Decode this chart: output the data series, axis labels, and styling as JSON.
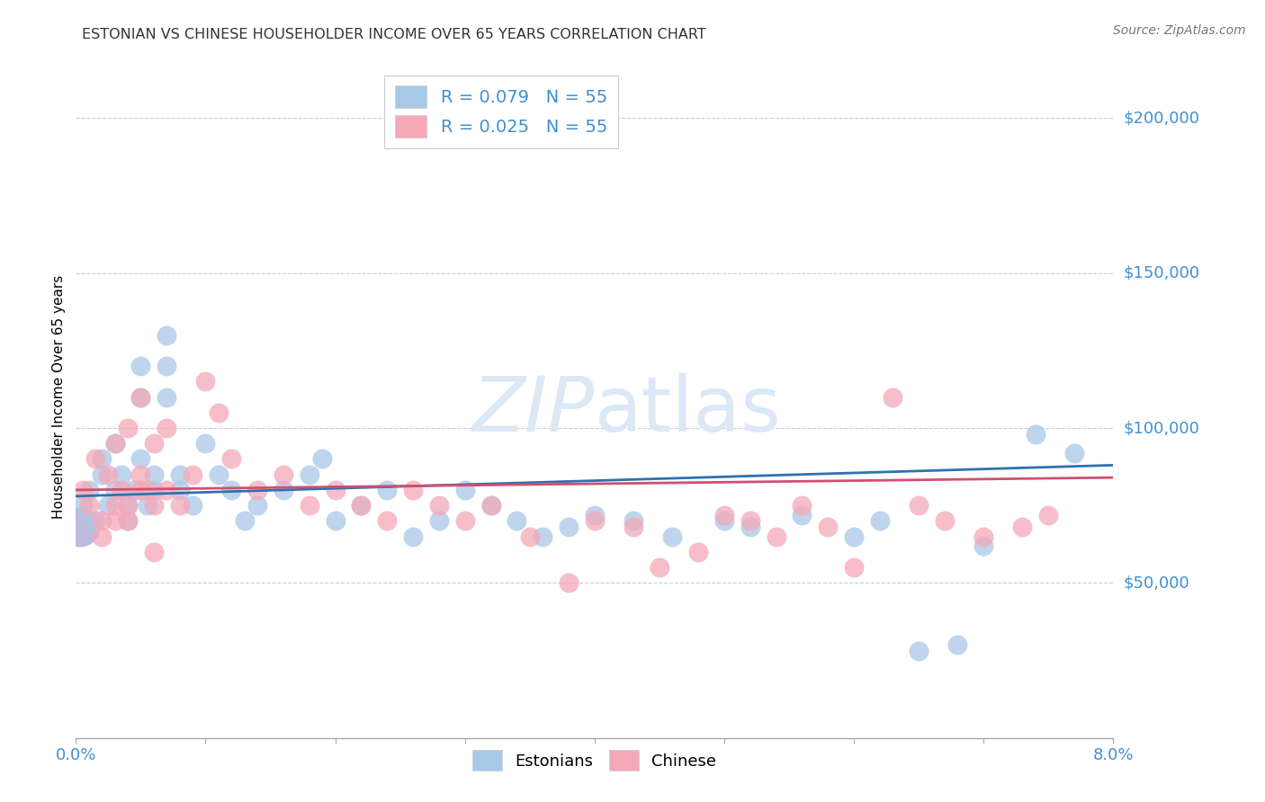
{
  "title": "ESTONIAN VS CHINESE HOUSEHOLDER INCOME OVER 65 YEARS CORRELATION CHART",
  "source": "Source: ZipAtlas.com",
  "ylabel": "Householder Income Over 65 years",
  "xlim": [
    0.0,
    0.08
  ],
  "ylim": [
    0,
    220000
  ],
  "color_estonian": "#a8c8e8",
  "color_chinese": "#f4a8b8",
  "trendline_color_estonian": "#3070b0",
  "trendline_color_chinese": "#d05070",
  "watermark_color": "#dce8f5",
  "ytick_color": "#4090d0",
  "xtick_color": "#4090d0",
  "grid_color": "#cccccc",
  "legend_label1": "R = 0.079   N = 55",
  "legend_label2": "R = 0.025   N = 55",
  "estonian_x": [
    0.0005,
    0.001,
    0.0015,
    0.002,
    0.002,
    0.0025,
    0.003,
    0.003,
    0.0035,
    0.004,
    0.004,
    0.0045,
    0.005,
    0.005,
    0.005,
    0.0055,
    0.006,
    0.006,
    0.007,
    0.007,
    0.007,
    0.008,
    0.008,
    0.009,
    0.01,
    0.011,
    0.012,
    0.013,
    0.014,
    0.016,
    0.018,
    0.019,
    0.02,
    0.022,
    0.024,
    0.026,
    0.028,
    0.03,
    0.032,
    0.034,
    0.036,
    0.038,
    0.04,
    0.043,
    0.046,
    0.05,
    0.052,
    0.056,
    0.06,
    0.062,
    0.065,
    0.068,
    0.07,
    0.074,
    0.077
  ],
  "estonian_y": [
    75000,
    80000,
    70000,
    85000,
    90000,
    75000,
    95000,
    80000,
    85000,
    75000,
    70000,
    80000,
    120000,
    110000,
    90000,
    75000,
    80000,
    85000,
    130000,
    120000,
    110000,
    80000,
    85000,
    75000,
    95000,
    85000,
    80000,
    70000,
    75000,
    80000,
    85000,
    90000,
    70000,
    75000,
    80000,
    65000,
    70000,
    80000,
    75000,
    70000,
    65000,
    68000,
    72000,
    70000,
    65000,
    70000,
    68000,
    72000,
    65000,
    70000,
    28000,
    30000,
    62000,
    98000,
    92000
  ],
  "chinese_x": [
    0.0005,
    0.001,
    0.0015,
    0.002,
    0.0025,
    0.003,
    0.003,
    0.0035,
    0.004,
    0.004,
    0.005,
    0.005,
    0.0055,
    0.006,
    0.006,
    0.007,
    0.007,
    0.008,
    0.009,
    0.01,
    0.011,
    0.012,
    0.014,
    0.016,
    0.018,
    0.02,
    0.022,
    0.024,
    0.026,
    0.028,
    0.03,
    0.032,
    0.035,
    0.038,
    0.04,
    0.043,
    0.045,
    0.048,
    0.05,
    0.052,
    0.054,
    0.056,
    0.058,
    0.06,
    0.063,
    0.065,
    0.067,
    0.07,
    0.073,
    0.075,
    0.002,
    0.003,
    0.004,
    0.005,
    0.006
  ],
  "chinese_y": [
    80000,
    75000,
    90000,
    70000,
    85000,
    95000,
    75000,
    80000,
    100000,
    70000,
    110000,
    85000,
    80000,
    95000,
    75000,
    100000,
    80000,
    75000,
    85000,
    115000,
    105000,
    90000,
    80000,
    85000,
    75000,
    80000,
    75000,
    70000,
    80000,
    75000,
    70000,
    75000,
    65000,
    50000,
    70000,
    68000,
    55000,
    60000,
    72000,
    70000,
    65000,
    75000,
    68000,
    55000,
    110000,
    75000,
    70000,
    65000,
    68000,
    72000,
    65000,
    70000,
    75000,
    80000,
    60000
  ]
}
